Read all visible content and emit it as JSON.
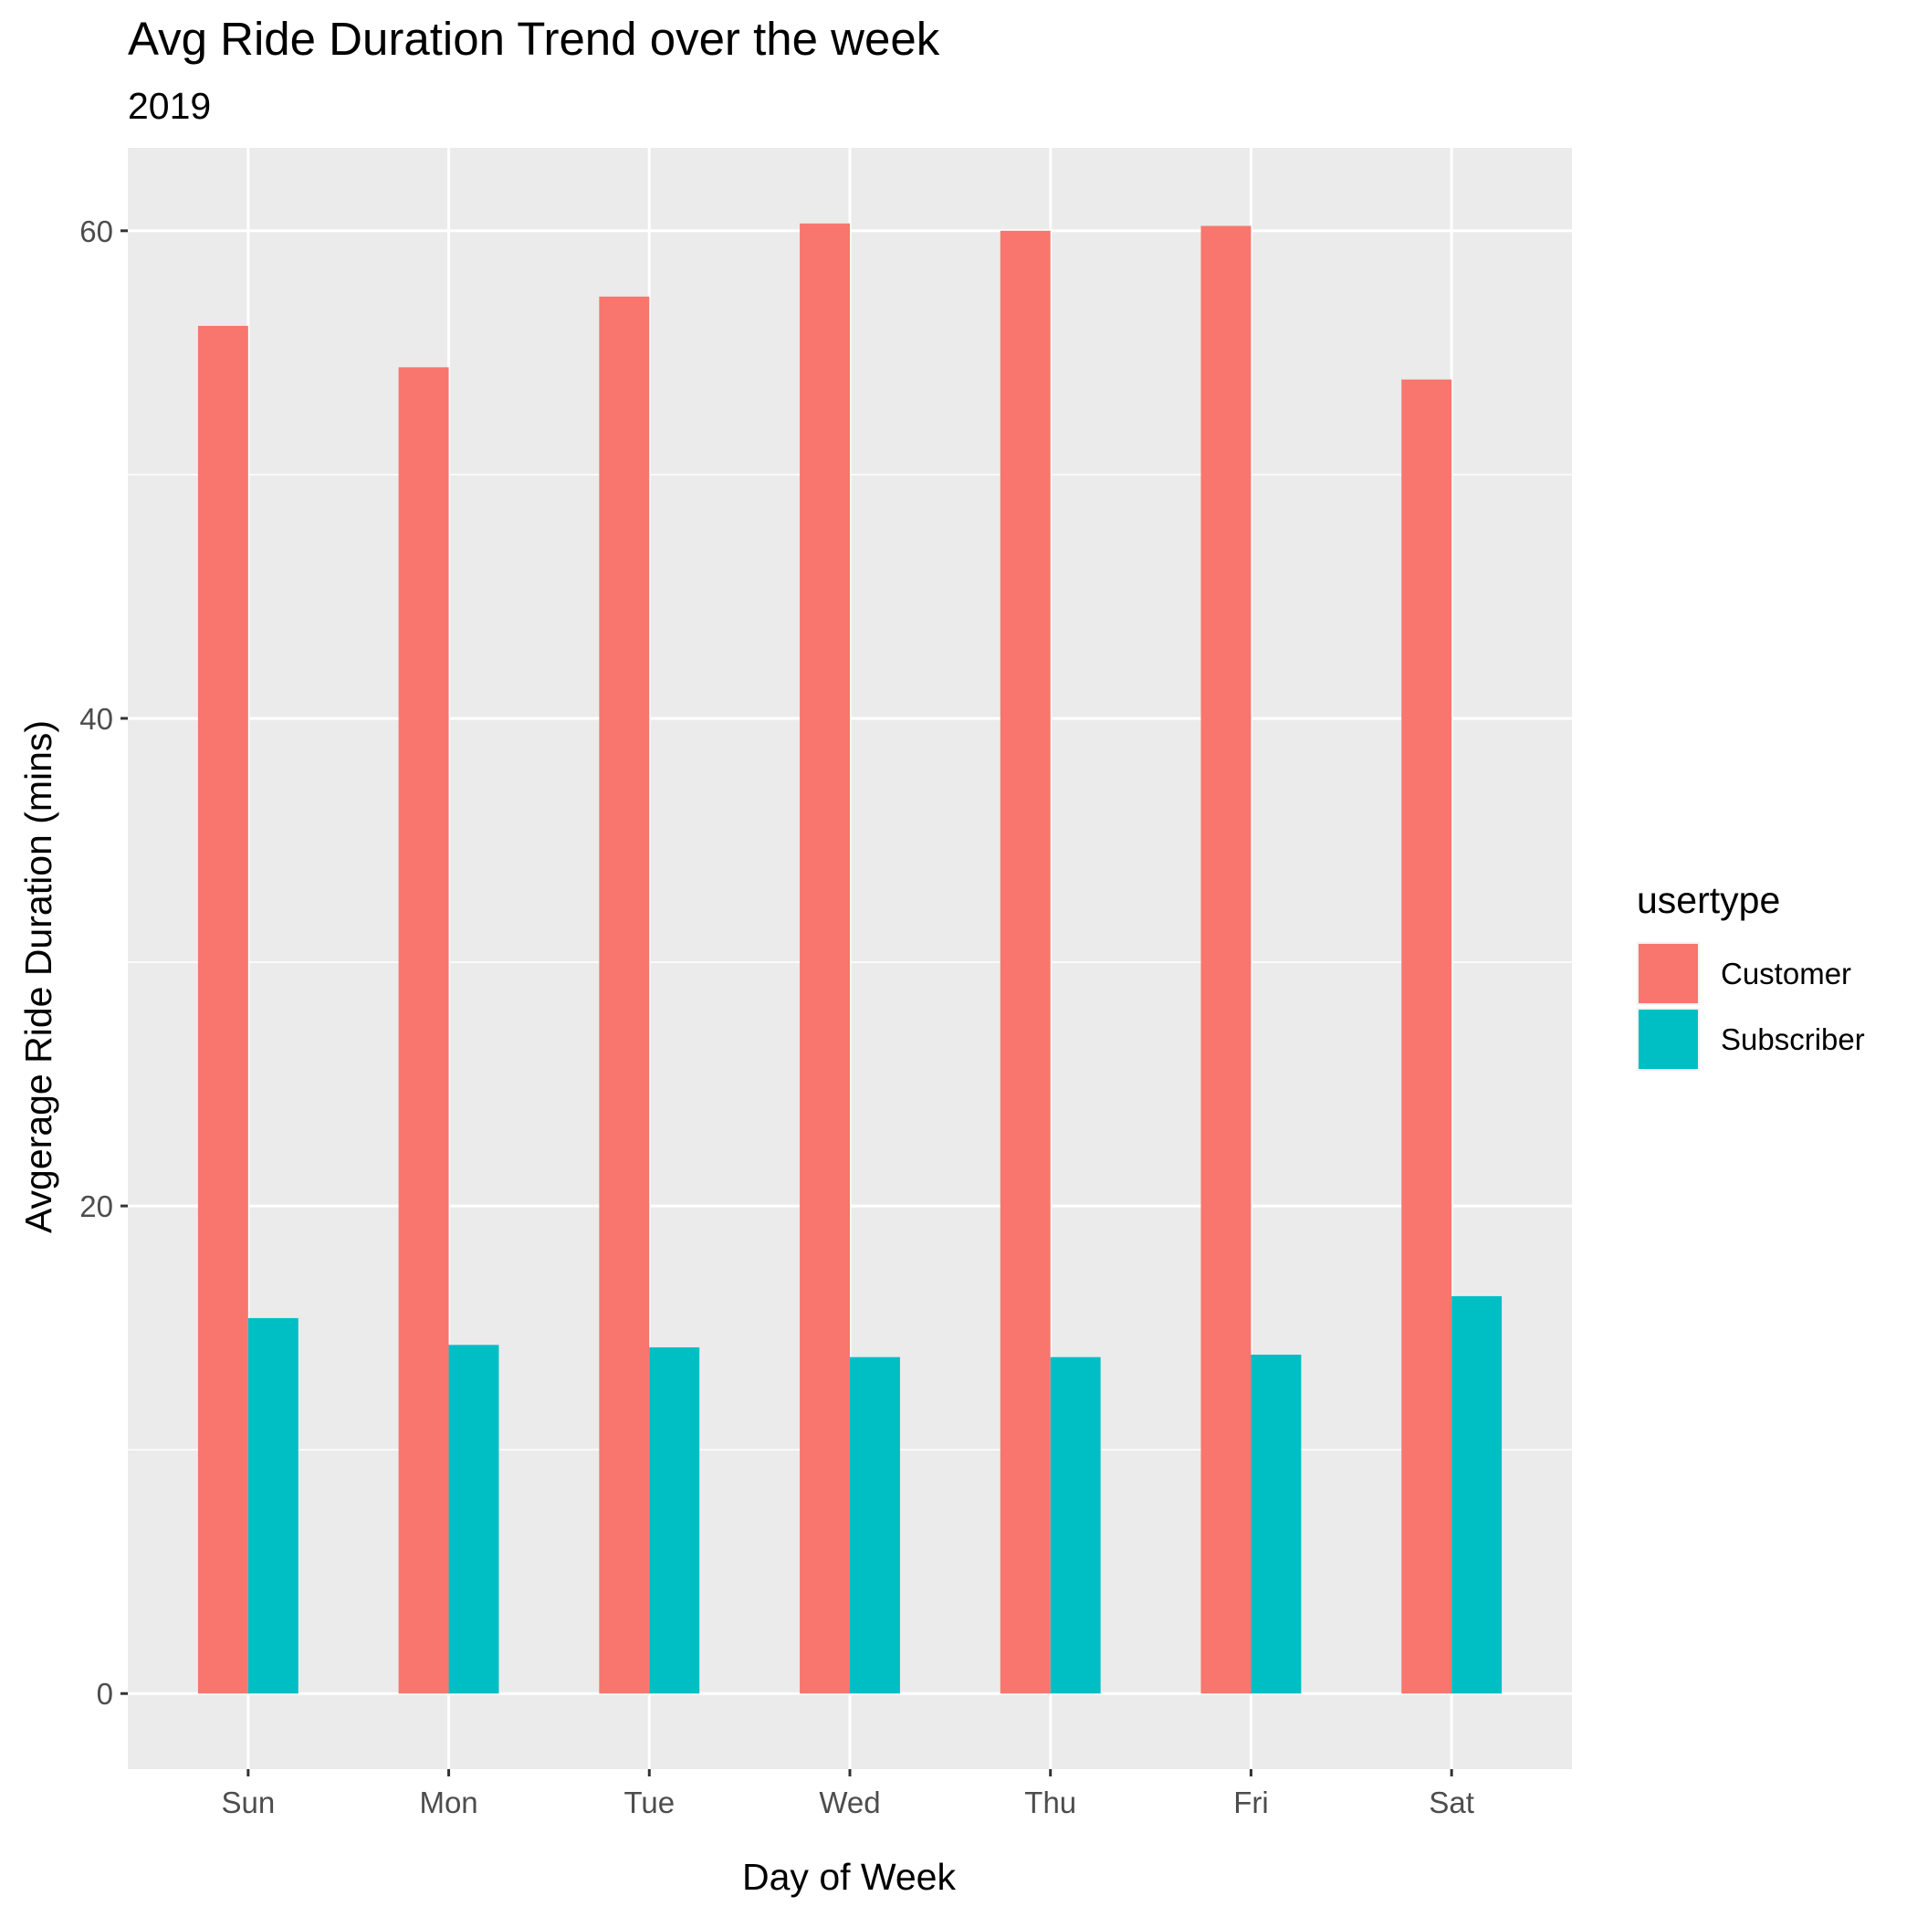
{
  "chart_data": {
    "type": "bar",
    "title": "Avg Ride Duration Trend over the week",
    "subtitle": "2019",
    "xlabel": "Day of Week",
    "ylabel": "Avgerage Ride Duration (mins)",
    "categories": [
      "Sun",
      "Mon",
      "Tue",
      "Wed",
      "Thu",
      "Fri",
      "Sat"
    ],
    "series": [
      {
        "name": "Customer",
        "color": "#F8766D",
        "values": [
          56.1,
          54.4,
          57.3,
          60.3,
          60.0,
          60.2,
          53.9
        ]
      },
      {
        "name": "Subscriber",
        "color": "#00BFC4",
        "values": [
          15.4,
          14.3,
          14.2,
          13.8,
          13.8,
          13.9,
          16.3
        ]
      }
    ],
    "ylim": [
      -3.1,
      63.4
    ],
    "yticks": [
      0,
      20,
      40,
      60
    ],
    "grid": true,
    "legend": {
      "title": "usertype",
      "position": "right"
    }
  }
}
